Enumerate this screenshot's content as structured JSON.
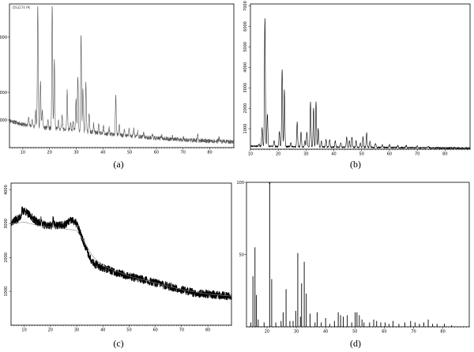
{
  "chart_data": [
    {
      "type": "line",
      "caption": "(a)",
      "header": "DS3274 PK",
      "x_ticks": [
        "10",
        "20",
        "30",
        "40",
        "50",
        "60",
        "70",
        "80"
      ],
      "y_ticks": [
        "5000",
        "10000",
        "20000"
      ],
      "xlim": [
        5,
        89
      ],
      "ylim": [
        0,
        26000
      ],
      "color": "#555555",
      "baseline": [
        [
          5,
          4900
        ],
        [
          10,
          4200
        ],
        [
          15,
          3700
        ],
        [
          20,
          3500
        ],
        [
          25,
          3300
        ],
        [
          30,
          3100
        ],
        [
          35,
          2800
        ],
        [
          40,
          2500
        ],
        [
          45,
          2300
        ],
        [
          50,
          2100
        ],
        [
          55,
          1900
        ],
        [
          60,
          1700
        ],
        [
          65,
          1550
        ],
        [
          70,
          1400
        ],
        [
          75,
          1300
        ],
        [
          80,
          1200
        ],
        [
          85,
          1100
        ],
        [
          89,
          1050
        ]
      ],
      "peaks": [
        [
          12.2,
          1800
        ],
        [
          13.5,
          1200
        ],
        [
          14.8,
          2800
        ],
        [
          15.6,
          22000
        ],
        [
          16.6,
          8500
        ],
        [
          17.3,
          3200
        ],
        [
          19.4,
          1500
        ],
        [
          21.0,
          22500
        ],
        [
          21.8,
          12500
        ],
        [
          23.3,
          1500
        ],
        [
          24.7,
          2800
        ],
        [
          26.6,
          7000
        ],
        [
          27.9,
          1200
        ],
        [
          28.8,
          1500
        ],
        [
          29.9,
          6000
        ],
        [
          30.6,
          10000
        ],
        [
          31.8,
          17500
        ],
        [
          32.5,
          7500
        ],
        [
          33.6,
          9000
        ],
        [
          34.8,
          3500
        ],
        [
          36.5,
          1500
        ],
        [
          38.4,
          1400
        ],
        [
          40.2,
          1300
        ],
        [
          42.3,
          1200
        ],
        [
          44.8,
          7000
        ],
        [
          46.1,
          1800
        ],
        [
          48.0,
          900
        ],
        [
          49.8,
          1200
        ],
        [
          51.5,
          1500
        ],
        [
          53.0,
          900
        ],
        [
          55.2,
          700
        ],
        [
          58.5,
          600
        ],
        [
          62.0,
          500
        ],
        [
          66.0,
          400
        ],
        [
          70.2,
          450
        ],
        [
          75.5,
          900
        ],
        [
          83.5,
          700
        ]
      ],
      "noise": 380,
      "seed": 11
    },
    {
      "type": "line",
      "caption": "(b)",
      "x_ticks": [
        "10",
        "20",
        "30",
        "40",
        "50",
        "60",
        "70",
        "80"
      ],
      "y_ticks": [
        "1000",
        "2000",
        "3000",
        "4000",
        "5000",
        "6000",
        "7000"
      ],
      "xlim": [
        10,
        89
      ],
      "ylim": [
        0,
        7100
      ],
      "color": "#000000",
      "baseline": [
        [
          10,
          150
        ],
        [
          20,
          130
        ],
        [
          30,
          115
        ],
        [
          40,
          100
        ],
        [
          50,
          90
        ],
        [
          60,
          80
        ],
        [
          70,
          70
        ],
        [
          80,
          60
        ],
        [
          89,
          55
        ]
      ],
      "peaks": [
        [
          13.1,
          120
        ],
        [
          14.2,
          900
        ],
        [
          15.2,
          6300
        ],
        [
          16.1,
          1600
        ],
        [
          18.5,
          300
        ],
        [
          20.4,
          700
        ],
        [
          21.4,
          3800
        ],
        [
          22.2,
          2800
        ],
        [
          24.5,
          200
        ],
        [
          26.8,
          1200
        ],
        [
          28.2,
          700
        ],
        [
          29.6,
          300
        ],
        [
          30.3,
          700
        ],
        [
          31.6,
          2200
        ],
        [
          32.7,
          1900
        ],
        [
          33.6,
          2200
        ],
        [
          34.4,
          900
        ],
        [
          35.5,
          300
        ],
        [
          37.2,
          350
        ],
        [
          38.5,
          400
        ],
        [
          40.5,
          300
        ],
        [
          42.5,
          200
        ],
        [
          44.6,
          500
        ],
        [
          45.6,
          300
        ],
        [
          46.5,
          500
        ],
        [
          48.0,
          300
        ],
        [
          49.5,
          200
        ],
        [
          50.5,
          500
        ],
        [
          51.8,
          700
        ],
        [
          53.0,
          300
        ],
        [
          55.0,
          200
        ],
        [
          57.5,
          150
        ],
        [
          60.0,
          150
        ],
        [
          63.0,
          100
        ],
        [
          66.0,
          100
        ],
        [
          70.0,
          80
        ],
        [
          74.0,
          80
        ]
      ],
      "noise": 40,
      "seed": 23
    },
    {
      "type": "line",
      "caption": "(c)",
      "x_ticks": [
        "10",
        "20",
        "30",
        "40",
        "50",
        "60",
        "70",
        "80"
      ],
      "y_ticks": [
        "1000",
        "2000",
        "3000",
        "4000"
      ],
      "xlim": [
        5,
        89
      ],
      "ylim": [
        0,
        4200
      ],
      "color": "#000000",
      "baseline": [
        [
          5,
          3050
        ],
        [
          8,
          3150
        ],
        [
          10,
          3400
        ],
        [
          12,
          3250
        ],
        [
          15,
          3050
        ],
        [
          18,
          2950
        ],
        [
          20,
          2950
        ],
        [
          22,
          2950
        ],
        [
          25,
          2950
        ],
        [
          28,
          3100
        ],
        [
          30,
          3000
        ],
        [
          31,
          2800
        ],
        [
          33,
          2400
        ],
        [
          35,
          2000
        ],
        [
          37,
          1800
        ],
        [
          40,
          1700
        ],
        [
          45,
          1550
        ],
        [
          50,
          1450
        ],
        [
          55,
          1350
        ],
        [
          60,
          1250
        ],
        [
          65,
          1150
        ],
        [
          70,
          1050
        ],
        [
          75,
          950
        ],
        [
          80,
          920
        ],
        [
          85,
          880
        ],
        [
          89,
          860
        ]
      ],
      "smooth": [
        [
          5,
          3000
        ],
        [
          10,
          3050
        ],
        [
          15,
          2950
        ],
        [
          20,
          2900
        ],
        [
          25,
          2850
        ],
        [
          30,
          2800
        ],
        [
          33,
          2450
        ],
        [
          36,
          2050
        ],
        [
          40,
          1750
        ],
        [
          50,
          1450
        ],
        [
          60,
          1250
        ],
        [
          70,
          1050
        ],
        [
          80,
          920
        ],
        [
          89,
          860
        ]
      ],
      "peaks": [
        [
          21.0,
          250
        ],
        [
          16.5,
          120
        ],
        [
          9.2,
          100
        ]
      ],
      "noise": 120,
      "seed": 37
    },
    {
      "type": "bar",
      "caption": "(d)",
      "annotation": "*",
      "x_ticks": [
        "20",
        "30",
        "40",
        "50",
        "60",
        "70",
        "80"
      ],
      "y_ticks": [
        "50",
        "100"
      ],
      "xlim": [
        13,
        89
      ],
      "ylim": [
        0,
        100
      ],
      "color": "#000000",
      "bars": [
        [
          14.5,
          3
        ],
        [
          15.2,
          35
        ],
        [
          15.9,
          55
        ],
        [
          16.4,
          22
        ],
        [
          17.0,
          5
        ],
        [
          19.0,
          3
        ],
        [
          20.9,
          100
        ],
        [
          21.6,
          33
        ],
        [
          23.0,
          3
        ],
        [
          24.8,
          4
        ],
        [
          25.5,
          10
        ],
        [
          26.5,
          26
        ],
        [
          27.8,
          4
        ],
        [
          28.9,
          4
        ],
        [
          29.8,
          11
        ],
        [
          30.5,
          51
        ],
        [
          31.4,
          7
        ],
        [
          31.8,
          30
        ],
        [
          32.7,
          45
        ],
        [
          33.4,
          23
        ],
        [
          34.7,
          9
        ],
        [
          36.4,
          3
        ],
        [
          37.1,
          10
        ],
        [
          38.5,
          3
        ],
        [
          40.0,
          6
        ],
        [
          41.4,
          2
        ],
        [
          43.0,
          4
        ],
        [
          44.3,
          10
        ],
        [
          45.1,
          8
        ],
        [
          46.0,
          7
        ],
        [
          47.4,
          8
        ],
        [
          48.9,
          3
        ],
        [
          50.1,
          10
        ],
        [
          50.7,
          10
        ],
        [
          51.5,
          8
        ],
        [
          52.4,
          5
        ],
        [
          53.1,
          3
        ],
        [
          55.0,
          3
        ],
        [
          56.4,
          5
        ],
        [
          57.4,
          4
        ],
        [
          58.8,
          3
        ],
        [
          60.3,
          3
        ],
        [
          61.6,
          2
        ],
        [
          63.0,
          4
        ],
        [
          65.0,
          2
        ],
        [
          67.0,
          3
        ],
        [
          69.0,
          4
        ],
        [
          70.5,
          3
        ],
        [
          72.0,
          2
        ],
        [
          73.5,
          3
        ],
        [
          75.0,
          5
        ],
        [
          76.5,
          2
        ],
        [
          78.0,
          2
        ],
        [
          80.5,
          2
        ],
        [
          83.0,
          1
        ]
      ]
    }
  ]
}
